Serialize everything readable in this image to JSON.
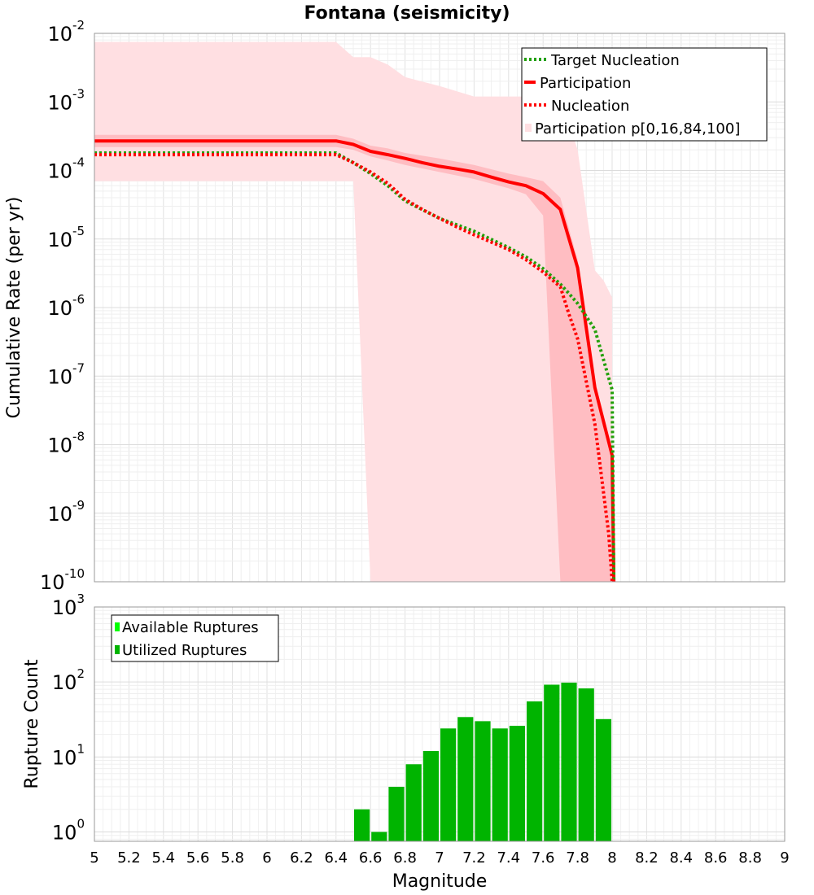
{
  "chart_data": [
    {
      "type": "line",
      "title": "Fontana (seismicity)",
      "ylabel": "Cumulative Rate (per yr)",
      "yscale": "log",
      "xlim": [
        5,
        9
      ],
      "ylim": [
        1e-10,
        0.01
      ],
      "y_tick_exponents": [
        -2,
        -3,
        -4,
        -5,
        -6,
        -7,
        -8,
        -9,
        -10
      ],
      "legend_position": "top-right",
      "legend": [
        "Target Nucleation",
        "Participation",
        "Nucleation",
        "Participation p[0,16,84,100]"
      ],
      "colors": {
        "target": "#22a00a",
        "participation": "#ff0000",
        "band_outer": "#ffdfe2",
        "band_inner": "#ffbdc2"
      },
      "series": [
        {
          "name": "Target Nucleation",
          "style": "dotted",
          "x": [
            5.0,
            5.5,
            6.0,
            6.3,
            6.4,
            6.5,
            6.6,
            6.7,
            6.8,
            7.0,
            7.2,
            7.4,
            7.5,
            7.6,
            7.7,
            7.75,
            7.8,
            7.9,
            8.0,
            8.01
          ],
          "y": [
            0.00018,
            0.00018,
            0.00018,
            0.00018,
            0.00018,
            0.00013,
            9e-05,
            6e-05,
            3.6e-05,
            2e-05,
            1.3e-05,
            7.5e-06,
            5.5e-06,
            3.7e-06,
            2.2e-06,
            1.6e-06,
            1.15e-06,
            4.8e-07,
            6.3e-08,
            1e-10
          ]
        },
        {
          "name": "Participation",
          "style": "solid",
          "x": [
            5.0,
            5.5,
            6.0,
            6.3,
            6.4,
            6.5,
            6.6,
            6.7,
            6.8,
            6.9,
            7.0,
            7.1,
            7.2,
            7.3,
            7.4,
            7.5,
            7.6,
            7.7,
            7.8,
            7.9,
            8.0,
            8.01
          ],
          "y": [
            0.00027,
            0.00027,
            0.00027,
            0.00027,
            0.00027,
            0.00024,
            0.00019,
            0.00017,
            0.00015,
            0.00013,
            0.000115,
            0.000105,
            9.5e-05,
            8e-05,
            6.8e-05,
            6e-05,
            4.6e-05,
            2.7e-05,
            3.8e-06,
            6.8e-08,
            7e-09,
            1e-10
          ]
        },
        {
          "name": "Nucleation",
          "style": "dotted",
          "x": [
            5.0,
            5.5,
            6.0,
            6.3,
            6.4,
            6.5,
            6.6,
            6.7,
            6.8,
            6.9,
            7.0,
            7.1,
            7.2,
            7.3,
            7.4,
            7.5,
            7.6,
            7.7,
            7.75,
            7.8,
            7.9,
            7.98,
            8.0
          ],
          "y": [
            0.00017,
            0.00017,
            0.00017,
            0.00017,
            0.00017,
            0.00013,
            9.5e-05,
            6.5e-05,
            3.8e-05,
            2.7e-05,
            2e-05,
            1.5e-05,
            1.15e-05,
            9e-06,
            7e-06,
            5e-06,
            3.3e-06,
            2e-06,
            8e-07,
            3.5e-07,
            2e-08,
            5e-10,
            1e-10
          ]
        }
      ],
      "band_outer": {
        "name": "Participation p[0,16,84,100]",
        "x": [
          5.0,
          6.3,
          6.4,
          6.5,
          6.6,
          6.7,
          6.8,
          7.0,
          7.2,
          7.4,
          7.5,
          7.6,
          7.7,
          7.8,
          7.9,
          7.95,
          8.0
        ],
        "upper": [
          0.0075,
          0.0075,
          0.0075,
          0.0045,
          0.0045,
          0.0035,
          0.0023,
          0.0017,
          0.0012,
          0.0012,
          0.0012,
          0.0012,
          0.0012,
          0.0002,
          3.5e-06,
          2.5e-06,
          1.4e-06
        ],
        "lower": [
          7e-05,
          7e-05,
          7e-05,
          7e-05,
          1e-10,
          1e-10,
          1e-10,
          1e-10,
          1e-10,
          1e-10,
          1e-10,
          1e-10,
          1e-10,
          1e-10,
          1e-10,
          1e-10,
          1e-10
        ]
      },
      "band_inner": {
        "x": [
          5.0,
          6.3,
          6.4,
          6.5,
          6.6,
          6.7,
          6.8,
          7.0,
          7.2,
          7.4,
          7.5,
          7.6,
          7.7,
          7.8,
          7.9,
          8.0
        ],
        "upper": [
          0.00033,
          0.00033,
          0.00033,
          0.00029,
          0.00023,
          0.00021,
          0.00018,
          0.00015,
          0.00012,
          9e-05,
          8e-05,
          7e-05,
          4e-05,
          5e-06,
          8e-08,
          8e-09
        ],
        "lower": [
          0.00022,
          0.00022,
          0.00022,
          0.0002,
          0.00016,
          0.00014,
          0.00012,
          9.5e-05,
          7.5e-05,
          5.5e-05,
          4.5e-05,
          2.2e-05,
          1e-10,
          1e-10,
          1e-10,
          1e-10
        ]
      }
    },
    {
      "type": "bar",
      "xlabel": "Magnitude",
      "ylabel": "Rupture Count",
      "yscale": "log",
      "xlim": [
        5,
        9
      ],
      "ylim": [
        0.75,
        1000
      ],
      "y_tick_exponents": [
        0,
        1,
        2,
        3
      ],
      "x_ticks": [
        "5",
        "5.2",
        "5.4",
        "5.6",
        "5.8",
        "6",
        "6.2",
        "6.4",
        "6.6",
        "6.8",
        "7",
        "7.2",
        "7.4",
        "7.6",
        "7.8",
        "8",
        "8.2",
        "8.4",
        "8.6",
        "8.8",
        "9"
      ],
      "legend_position": "top-left",
      "legend": [
        "Available Ruptures",
        "Utilized Ruptures"
      ],
      "colors": {
        "available": "#00ff00",
        "utilized": "#00b400"
      },
      "bin_width": 0.1,
      "series": [
        {
          "name": "Utilized Ruptures",
          "x": [
            6.55,
            6.65,
            6.75,
            6.85,
            6.95,
            7.05,
            7.15,
            7.25,
            7.35,
            7.45,
            7.55,
            7.65,
            7.75,
            7.85,
            7.95
          ],
          "values": [
            2,
            1,
            4,
            8,
            12,
            24,
            34,
            30,
            24,
            26,
            55,
            92,
            98,
            82,
            32
          ]
        }
      ]
    }
  ]
}
